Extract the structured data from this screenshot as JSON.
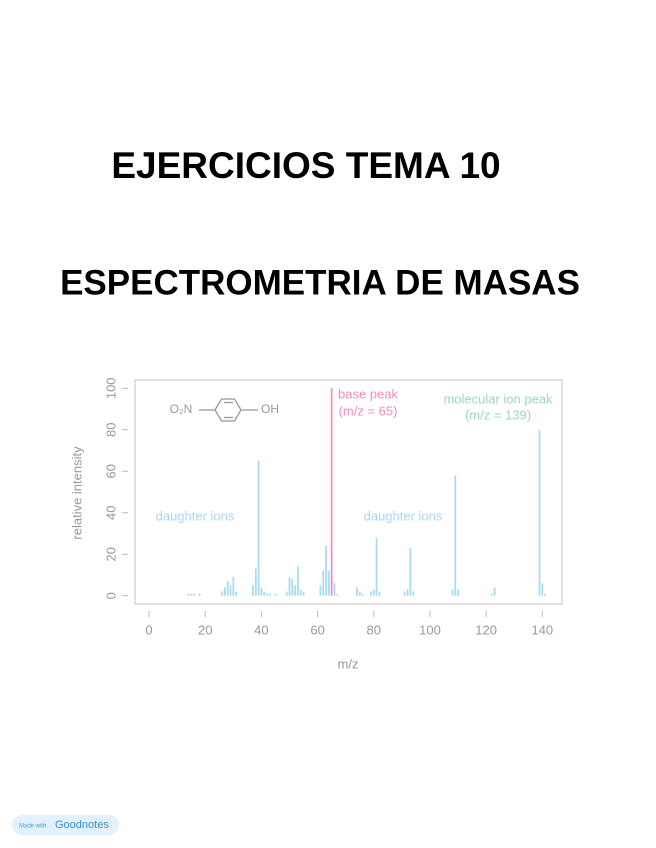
{
  "title": "EJERCICIOS TEMA 10",
  "subtitle": "ESPECTROMETRIA DE MASAS",
  "chart_data": {
    "type": "bar",
    "x_label": "m/z",
    "y_label": "relative intensity",
    "molecule": [
      "O₂N",
      "OH"
    ],
    "annotations": [
      {
        "text": "base peak",
        "detail": "(m/z = 65)",
        "color": "#f08ec0"
      },
      {
        "text": "molecular ion peak",
        "detail": "(m/z = 139)",
        "color": "#9fd8b8"
      },
      {
        "text": "daughter ions",
        "color": "#a9d8ee"
      },
      {
        "text": "daughter ions",
        "color": "#a9d8ee"
      }
    ],
    "x": [
      14,
      15,
      16,
      18,
      26,
      27,
      28,
      29,
      30,
      31,
      37,
      38,
      39,
      40,
      41,
      42,
      43,
      45,
      49,
      50,
      51,
      52,
      53,
      54,
      55,
      61,
      62,
      63,
      64,
      65,
      66,
      67,
      74,
      75,
      76,
      79,
      80,
      81,
      82,
      91,
      92,
      93,
      94,
      108,
      109,
      110,
      122,
      123,
      139,
      140,
      141
    ],
    "values": [
      1,
      1,
      1,
      1,
      2,
      4,
      7,
      5,
      9,
      2,
      5,
      13,
      65,
      4,
      2,
      1,
      1,
      1,
      2,
      9,
      8,
      5,
      14,
      3,
      2,
      5,
      12,
      24,
      12,
      100,
      6,
      1,
      4,
      2,
      1,
      2,
      3,
      28,
      2,
      2,
      3,
      23,
      2,
      3,
      58,
      3,
      1,
      4,
      80,
      6,
      1
    ],
    "colors": [
      "#a9dcef",
      "#a9dcef",
      "#a9dcef",
      "#a9dcef",
      "#a9dcef",
      "#a9dcef",
      "#a9dcef",
      "#a9dcef",
      "#a9dcef",
      "#a9dcef",
      "#a9dcef",
      "#a9dcef",
      "#a9dcef",
      "#a9dcef",
      "#a9dcef",
      "#a9dcef",
      "#a9dcef",
      "#a9dcef",
      "#a9dcef",
      "#a9dcef",
      "#a9dcef",
      "#a9dcef",
      "#a9dcef",
      "#a9dcef",
      "#a9dcef",
      "#a9dcef",
      "#a9dcef",
      "#a9dcef",
      "#a9dcef",
      "#f08ec0",
      "#a9dcef",
      "#a9dcef",
      "#a9dcef",
      "#a9dcef",
      "#a9dcef",
      "#a9dcef",
      "#a9dcef",
      "#a9dcef",
      "#a9dcef",
      "#a9dcef",
      "#a9dcef",
      "#a9dcef",
      "#a9dcef",
      "#a9dcef",
      "#a9dcef",
      "#a9dcef",
      "#a9dcef",
      "#a9dcef",
      "#a9dcef",
      "#a9dcef",
      "#a9dcef"
    ],
    "xlim": [
      -5,
      147
    ],
    "ylim": [
      -4,
      104
    ],
    "xticks": [
      0,
      20,
      40,
      60,
      80,
      100,
      120,
      140
    ],
    "yticks": [
      0,
      20,
      40,
      60,
      80,
      100
    ]
  },
  "badge": {
    "prefix": "Made with",
    "brand": "Goodnotes"
  }
}
